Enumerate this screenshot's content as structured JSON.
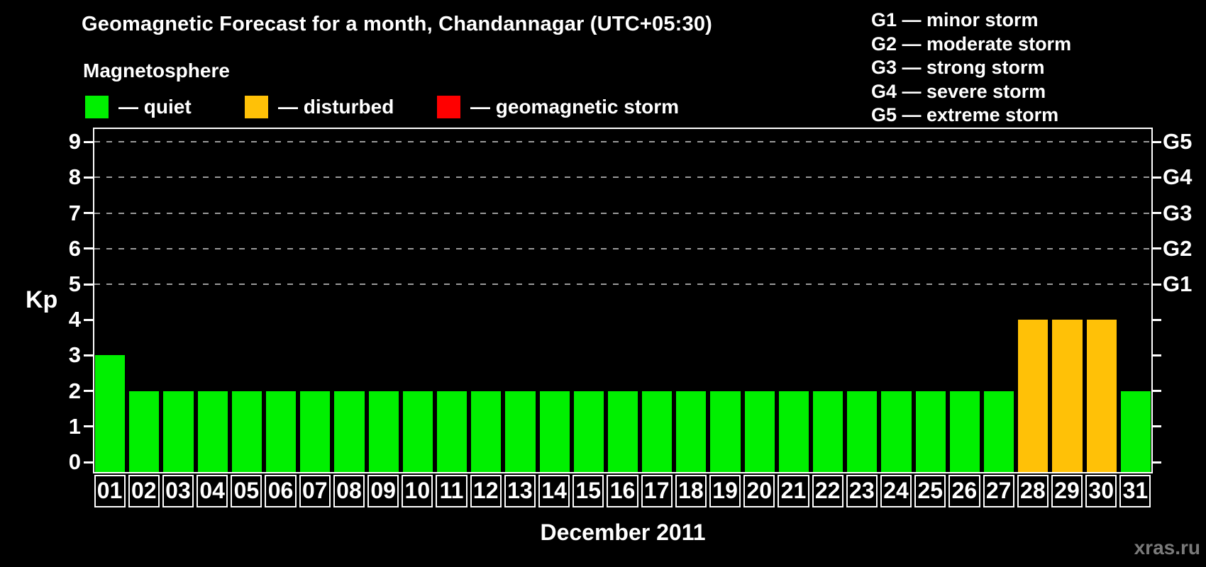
{
  "title": "Geomagnetic Forecast for a month, Chandannagar (UTC+05:30)",
  "subtitle": "Magnetosphere",
  "legend": {
    "items": [
      {
        "name": "quiet",
        "label": "— quiet",
        "color": "#00F000"
      },
      {
        "name": "disturbed",
        "label": "— disturbed",
        "color": "#FFC107"
      },
      {
        "name": "storm",
        "label": "— geomagnetic storm",
        "color": "#FF0000"
      }
    ]
  },
  "g_scale_legend": {
    "items": [
      {
        "label": "G1 — minor storm"
      },
      {
        "label": "G2 — moderate storm"
      },
      {
        "label": "G3 — strong storm"
      },
      {
        "label": "G4 — severe storm"
      },
      {
        "label": "G5 — extreme storm"
      }
    ]
  },
  "chart_data": {
    "type": "bar",
    "title": "Geomagnetic Forecast for a month, Chandannagar (UTC+05:30)",
    "xlabel": "December 2011",
    "ylabel": "Kp",
    "ylim": [
      0,
      9.4
    ],
    "grid": "dashed horizontal gridlines at Kp 5,6,7,8,9",
    "legend_position": "top-left",
    "categories": [
      "01",
      "02",
      "03",
      "04",
      "05",
      "06",
      "07",
      "08",
      "09",
      "10",
      "11",
      "12",
      "13",
      "14",
      "15",
      "16",
      "17",
      "18",
      "19",
      "20",
      "21",
      "22",
      "23",
      "24",
      "25",
      "26",
      "27",
      "28",
      "29",
      "30",
      "31"
    ],
    "values": [
      3,
      2,
      2,
      2,
      2,
      2,
      2,
      2,
      2,
      2,
      2,
      2,
      2,
      2,
      2,
      2,
      2,
      2,
      2,
      2,
      2,
      2,
      2,
      2,
      2,
      2,
      2,
      4,
      4,
      4,
      2
    ],
    "color_rule": {
      "kp_0_to_3": "#00F000",
      "kp_4": "#FFC107",
      "kp_5_to_9": "#FF0000"
    },
    "left_ticks": [
      0,
      1,
      2,
      3,
      4,
      5,
      6,
      7,
      8,
      9
    ],
    "right_axis": [
      {
        "label": "G1",
        "kp": 5
      },
      {
        "label": "G2",
        "kp": 6
      },
      {
        "label": "G3",
        "kp": 7
      },
      {
        "label": "G4",
        "kp": 8
      },
      {
        "label": "G5",
        "kp": 9
      }
    ]
  },
  "footer": {
    "xaxis_title": "December 2011",
    "watermark": "xras.ru"
  }
}
